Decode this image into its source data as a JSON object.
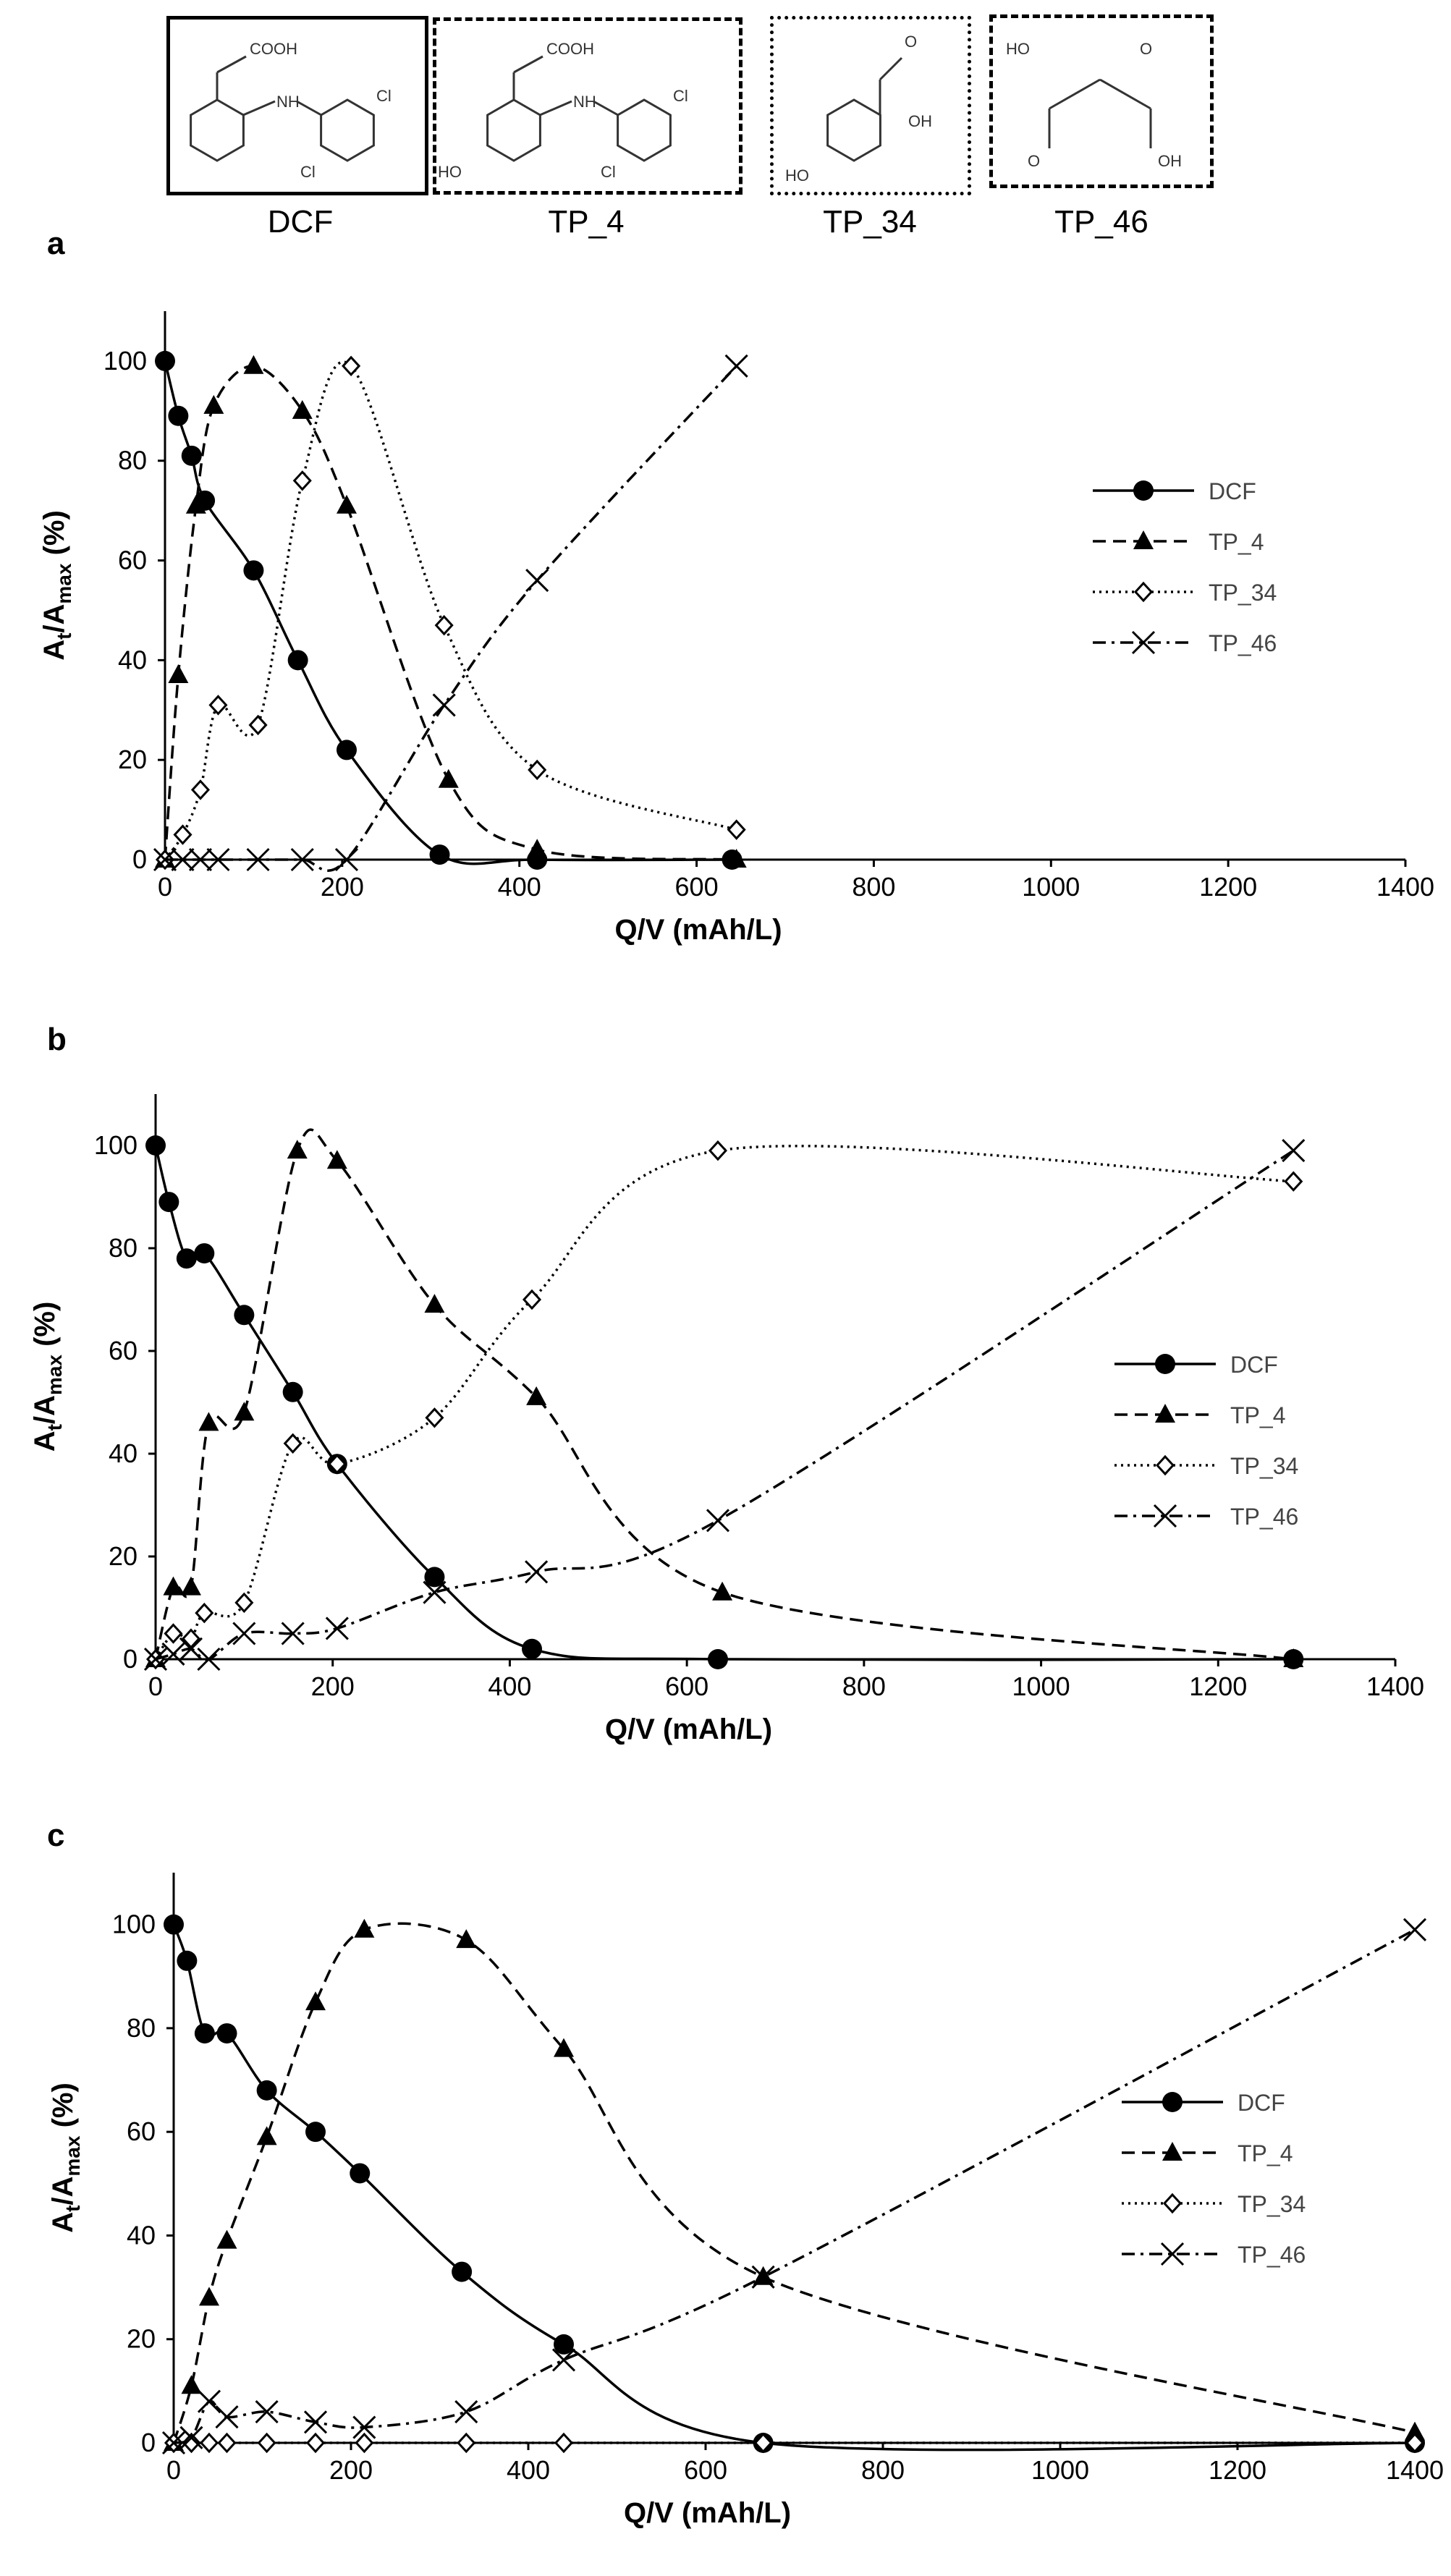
{
  "structures": [
    {
      "label": "DCF",
      "border": "solid",
      "atoms": [
        "COOH",
        "NH",
        "Cl",
        "Cl"
      ]
    },
    {
      "label": "TP_4",
      "border": "dashed",
      "atoms": [
        "COOH",
        "NH",
        "Cl",
        "HO",
        "Cl"
      ]
    },
    {
      "label": "TP_34",
      "border": "dotted",
      "atoms": [
        "O",
        "OH",
        "HO"
      ]
    },
    {
      "label": "TP_46",
      "border": "dashdot",
      "atoms": [
        "HO",
        "O",
        "O",
        "OH"
      ]
    }
  ],
  "chart_data": [
    {
      "panel": "a",
      "type": "line",
      "xlabel": "Q/V (mAh/L)",
      "ylabel": "At/Amax (%)",
      "xlim": [
        0,
        1400
      ],
      "ylim": [
        0,
        110
      ],
      "xticks": [
        0,
        200,
        400,
        600,
        800,
        1000,
        1200,
        1400
      ],
      "yticks": [
        0,
        20,
        40,
        60,
        80,
        100
      ],
      "legend_position": "right",
      "series": [
        {
          "name": "DCF",
          "marker": "circle",
          "dash": "solid",
          "x": [
            0,
            15,
            30,
            45,
            100,
            150,
            205,
            310,
            420,
            640
          ],
          "y": [
            100,
            89,
            81,
            72,
            58,
            40,
            22,
            1,
            0,
            0
          ]
        },
        {
          "name": "TP_4",
          "marker": "triangle",
          "dash": "dashed",
          "x": [
            0,
            15,
            35,
            55,
            100,
            155,
            205,
            320,
            420,
            645
          ],
          "y": [
            0,
            37,
            71,
            91,
            99,
            90,
            71,
            16,
            2,
            0
          ]
        },
        {
          "name": "TP_34",
          "marker": "diamond",
          "dash": "dotted",
          "x": [
            0,
            20,
            40,
            60,
            105,
            155,
            210,
            315,
            420,
            645
          ],
          "y": [
            0,
            5,
            14,
            31,
            27,
            76,
            99,
            47,
            18,
            6
          ]
        },
        {
          "name": "TP_46",
          "marker": "cross",
          "dash": "dashdot",
          "x": [
            0,
            20,
            40,
            60,
            105,
            155,
            205,
            315,
            420,
            645
          ],
          "y": [
            0,
            0,
            0,
            0,
            0,
            0,
            0,
            31,
            56,
            99
          ]
        }
      ]
    },
    {
      "panel": "b",
      "type": "line",
      "xlabel": "Q/V (mAh/L)",
      "ylabel": "At/Amax (%)",
      "xlim": [
        0,
        1400
      ],
      "ylim": [
        0,
        110
      ],
      "xticks": [
        0,
        200,
        400,
        600,
        800,
        1000,
        1200,
        1400
      ],
      "yticks": [
        0,
        20,
        40,
        60,
        80,
        100
      ],
      "legend_position": "right",
      "series": [
        {
          "name": "DCF",
          "marker": "circle",
          "dash": "solid",
          "x": [
            0,
            15,
            35,
            55,
            100,
            155,
            205,
            315,
            425,
            635,
            1285
          ],
          "y": [
            100,
            89,
            78,
            79,
            67,
            52,
            38,
            16,
            2,
            0,
            0
          ]
        },
        {
          "name": "TP_4",
          "marker": "triangle",
          "dash": "dashed",
          "x": [
            0,
            20,
            40,
            60,
            100,
            160,
            205,
            315,
            430,
            640,
            1285
          ],
          "y": [
            0,
            14,
            14,
            46,
            48,
            99,
            97,
            69,
            51,
            13,
            0
          ]
        },
        {
          "name": "TP_34",
          "marker": "diamond",
          "dash": "dotted",
          "x": [
            0,
            20,
            40,
            55,
            100,
            155,
            205,
            315,
            425,
            635,
            1285
          ],
          "y": [
            0,
            5,
            4,
            9,
            11,
            42,
            38,
            47,
            70,
            99,
            93
          ]
        },
        {
          "name": "TP_46",
          "marker": "cross",
          "dash": "dashdot",
          "x": [
            0,
            20,
            40,
            60,
            100,
            155,
            205,
            315,
            430,
            635,
            1285
          ],
          "y": [
            0,
            1,
            2,
            0,
            5,
            5,
            6,
            13,
            17,
            27,
            99
          ]
        }
      ]
    },
    {
      "panel": "c",
      "type": "line",
      "xlabel": "Q/V (mAh/L)",
      "ylabel": "At/Amax (%)",
      "xlim": [
        0,
        1400
      ],
      "ylim": [
        0,
        110
      ],
      "xticks": [
        0,
        200,
        400,
        600,
        800,
        1000,
        1200,
        1400
      ],
      "yticks": [
        0,
        20,
        40,
        60,
        80,
        100
      ],
      "legend_position": "right",
      "series": [
        {
          "name": "DCF",
          "marker": "circle",
          "dash": "solid",
          "x": [
            0,
            15,
            35,
            60,
            105,
            160,
            210,
            325,
            440,
            665,
            1400
          ],
          "y": [
            100,
            93,
            79,
            79,
            68,
            60,
            52,
            33,
            19,
            0,
            0
          ]
        },
        {
          "name": "TP_4",
          "marker": "triangle",
          "dash": "dashed",
          "x": [
            0,
            20,
            40,
            60,
            105,
            160,
            215,
            330,
            440,
            665,
            1400
          ],
          "y": [
            0,
            11,
            28,
            39,
            59,
            85,
            99,
            97,
            76,
            32,
            2
          ]
        },
        {
          "name": "TP_34",
          "marker": "diamond",
          "dash": "dotted",
          "x": [
            0,
            20,
            40,
            60,
            105,
            160,
            215,
            330,
            440,
            665,
            1400
          ],
          "y": [
            0,
            0,
            0,
            0,
            0,
            0,
            0,
            0,
            0,
            0,
            0
          ]
        },
        {
          "name": "TP_46",
          "marker": "cross",
          "dash": "dashdot",
          "x": [
            0,
            20,
            40,
            60,
            105,
            160,
            215,
            330,
            440,
            665,
            1400
          ],
          "y": [
            0,
            1,
            8,
            5,
            6,
            4,
            3,
            6,
            16,
            32,
            99
          ]
        }
      ]
    }
  ]
}
